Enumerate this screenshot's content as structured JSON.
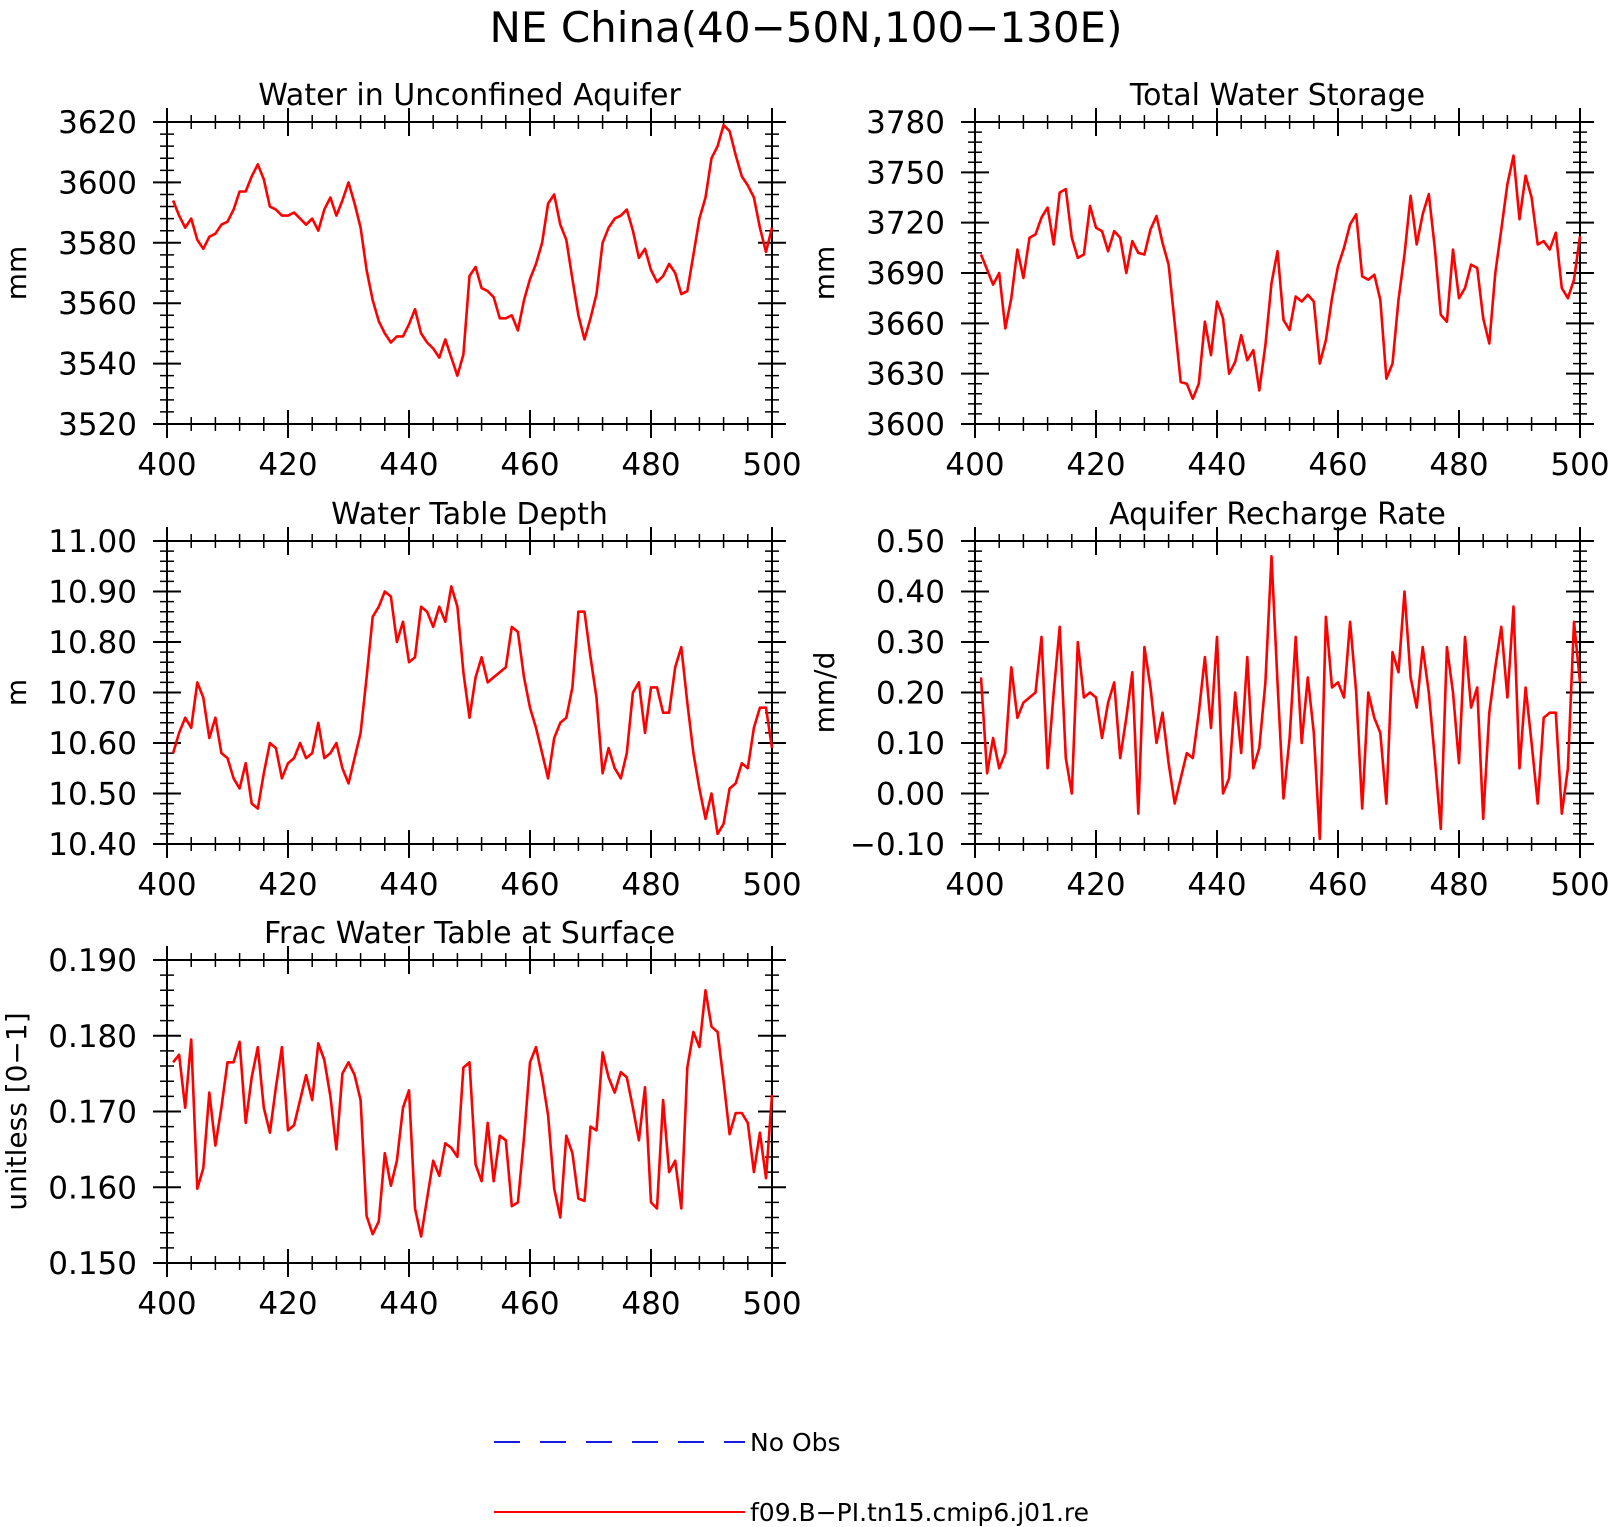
{
  "figure": {
    "title": "NE China(40−50N,100−130E)"
  },
  "legend": {
    "entries": [
      {
        "label": "No Obs",
        "color": "#1a1ae6",
        "style": "dashed"
      },
      {
        "label": "f09.B−PI.tn15.cmip6.j01.re",
        "color": "#ff0000",
        "style": "solid"
      }
    ]
  },
  "chart_data": [
    {
      "type": "line",
      "title": "Water in Unconfined Aquifer",
      "ylabel": "mm",
      "xlim": [
        400,
        500
      ],
      "ylim": [
        3520,
        3620
      ],
      "xticks": [
        "400",
        "420",
        "440",
        "460",
        "480",
        "500"
      ],
      "yticks": [
        "3520",
        "3540",
        "3560",
        "3580",
        "3600",
        "3620"
      ],
      "line_color": "#ff0000",
      "x_start": 401,
      "series": [
        {
          "values": [
            3594,
            3589,
            3585,
            3588,
            3581,
            3578,
            3582,
            3583,
            3586,
            3587,
            3591,
            3597,
            3597,
            3602,
            3606,
            3601,
            3592,
            3591,
            3589,
            3589,
            3590,
            3588,
            3586,
            3588,
            3584,
            3591,
            3595,
            3589,
            3594,
            3600,
            3593,
            3585,
            3571,
            3561,
            3554,
            3550,
            3547,
            3549,
            3549,
            3553,
            3558,
            3550,
            3547,
            3545,
            3542,
            3548,
            3542,
            3536,
            3543,
            3569,
            3572,
            3565,
            3564,
            3562,
            3555,
            3555,
            3556,
            3551,
            3561,
            3568,
            3573,
            3580,
            3593,
            3596,
            3586,
            3581,
            3568,
            3556,
            3548,
            3555,
            3563,
            3580,
            3585,
            3588,
            3589,
            3591,
            3584,
            3575,
            3578,
            3571,
            3567,
            3569,
            3573,
            3570,
            3563,
            3564,
            3576,
            3588,
            3595,
            3608,
            3612,
            3619,
            3617,
            3609,
            3602,
            3599,
            3595,
            3585,
            3577,
            3585
          ]
        }
      ]
    },
    {
      "type": "line",
      "title": "Total Water Storage",
      "ylabel": "mm",
      "xlim": [
        400,
        500
      ],
      "ylim": [
        3600,
        3780
      ],
      "xticks": [
        "400",
        "420",
        "440",
        "460",
        "480",
        "500"
      ],
      "yticks": [
        "3600",
        "3630",
        "3660",
        "3690",
        "3720",
        "3750",
        "3780"
      ],
      "line_color": "#ff0000",
      "x_start": 401,
      "series": [
        {
          "values": [
            3701,
            3692,
            3683,
            3690,
            3657,
            3675,
            3704,
            3687,
            3711,
            3713,
            3723,
            3729,
            3707,
            3738,
            3740,
            3711,
            3699,
            3701,
            3730,
            3717,
            3715,
            3703,
            3715,
            3711,
            3690,
            3709,
            3702,
            3701,
            3716,
            3724,
            3708,
            3695,
            3660,
            3625,
            3624,
            3615,
            3624,
            3661,
            3641,
            3673,
            3663,
            3630,
            3637,
            3653,
            3638,
            3644,
            3620,
            3647,
            3684,
            3703,
            3662,
            3656,
            3676,
            3673,
            3677,
            3673,
            3636,
            3650,
            3675,
            3694,
            3705,
            3719,
            3725,
            3688,
            3686,
            3689,
            3674,
            3627,
            3636,
            3674,
            3701,
            3736,
            3707,
            3725,
            3737,
            3705,
            3665,
            3661,
            3704,
            3675,
            3681,
            3695,
            3693,
            3663,
            3648,
            3690,
            3716,
            3743,
            3760,
            3722,
            3748,
            3735,
            3707,
            3709,
            3704,
            3714,
            3681,
            3675,
            3686,
            3712
          ]
        }
      ]
    },
    {
      "type": "line",
      "title": "Water Table Depth",
      "ylabel": "m",
      "xlim": [
        400,
        500
      ],
      "ylim": [
        10.4,
        11.0
      ],
      "xticks": [
        "400",
        "420",
        "440",
        "460",
        "480",
        "500"
      ],
      "yticks": [
        "10.40",
        "10.50",
        "10.60",
        "10.70",
        "10.80",
        "10.90",
        "11.00"
      ],
      "line_color": "#ff0000",
      "x_start": 401,
      "series": [
        {
          "values": [
            10.58,
            10.62,
            10.65,
            10.63,
            10.72,
            10.69,
            10.61,
            10.65,
            10.58,
            10.57,
            10.53,
            10.51,
            10.56,
            10.48,
            10.47,
            10.54,
            10.6,
            10.59,
            10.53,
            10.56,
            10.57,
            10.6,
            10.57,
            10.58,
            10.64,
            10.57,
            10.58,
            10.6,
            10.55,
            10.52,
            10.57,
            10.62,
            10.73,
            10.85,
            10.87,
            10.9,
            10.89,
            10.8,
            10.84,
            10.76,
            10.77,
            10.87,
            10.86,
            10.83,
            10.87,
            10.84,
            10.91,
            10.87,
            10.74,
            10.65,
            10.73,
            10.77,
            10.72,
            10.73,
            10.74,
            10.75,
            10.83,
            10.82,
            10.73,
            10.67,
            10.63,
            10.58,
            10.53,
            10.61,
            10.64,
            10.65,
            10.71,
            10.86,
            10.86,
            10.77,
            10.69,
            10.54,
            10.59,
            10.55,
            10.53,
            10.58,
            10.7,
            10.72,
            10.62,
            10.71,
            10.71,
            10.66,
            10.66,
            10.75,
            10.79,
            10.68,
            10.58,
            10.51,
            10.45,
            10.5,
            10.42,
            10.44,
            10.51,
            10.52,
            10.56,
            10.55,
            10.63,
            10.67,
            10.67,
            10.59
          ]
        }
      ]
    },
    {
      "type": "line",
      "title": "Aquifer Recharge Rate",
      "ylabel": "mm/d",
      "xlim": [
        400,
        500
      ],
      "ylim": [
        -0.1,
        0.5
      ],
      "xticks": [
        "400",
        "420",
        "440",
        "460",
        "480",
        "500"
      ],
      "yticks": [
        "−0.10",
        "0.00",
        "0.10",
        "0.20",
        "0.30",
        "0.40",
        "0.50"
      ],
      "line_color": "#ff0000",
      "x_start": 401,
      "series": [
        {
          "values": [
            0.23,
            0.04,
            0.11,
            0.05,
            0.08,
            0.25,
            0.15,
            0.18,
            0.19,
            0.2,
            0.31,
            0.05,
            0.2,
            0.33,
            0.07,
            0.0,
            0.3,
            0.19,
            0.2,
            0.19,
            0.11,
            0.18,
            0.22,
            0.07,
            0.15,
            0.24,
            -0.04,
            0.29,
            0.21,
            0.1,
            0.16,
            0.06,
            -0.02,
            0.03,
            0.08,
            0.07,
            0.16,
            0.27,
            0.13,
            0.31,
            0.0,
            0.03,
            0.2,
            0.08,
            0.27,
            0.05,
            0.09,
            0.22,
            0.47,
            0.22,
            -0.01,
            0.11,
            0.31,
            0.1,
            0.23,
            0.12,
            -0.09,
            0.35,
            0.21,
            0.22,
            0.19,
            0.34,
            0.2,
            -0.03,
            0.2,
            0.15,
            0.12,
            -0.02,
            0.28,
            0.24,
            0.4,
            0.23,
            0.17,
            0.29,
            0.2,
            0.07,
            -0.07,
            0.29,
            0.2,
            0.06,
            0.31,
            0.17,
            0.21,
            -0.05,
            0.16,
            0.25,
            0.33,
            0.19,
            0.37,
            0.05,
            0.21,
            0.1,
            -0.02,
            0.15,
            0.16,
            0.16,
            -0.04,
            0.05,
            0.34,
            0.22
          ]
        }
      ]
    },
    {
      "type": "line",
      "title": "Frac Water Table at Surface",
      "ylabel": "unitless [0−1]",
      "xlim": [
        400,
        500
      ],
      "ylim": [
        0.15,
        0.19
      ],
      "xticks": [
        "400",
        "420",
        "440",
        "460",
        "480",
        "500"
      ],
      "yticks": [
        "0.150",
        "0.160",
        "0.170",
        "0.180",
        "0.190"
      ],
      "line_color": "#ff0000",
      "x_start": 401,
      "series": [
        {
          "values": [
            0.1765,
            0.1775,
            0.1705,
            0.1795,
            0.1598,
            0.1625,
            0.1725,
            0.1655,
            0.1705,
            0.1765,
            0.1765,
            0.1792,
            0.1685,
            0.1745,
            0.1785,
            0.1705,
            0.1672,
            0.1732,
            0.1785,
            0.1675,
            0.1682,
            0.1715,
            0.1748,
            0.1715,
            0.179,
            0.1768,
            0.172,
            0.165,
            0.175,
            0.1765,
            0.1748,
            0.1715,
            0.1562,
            0.1538,
            0.1555,
            0.1645,
            0.1602,
            0.1635,
            0.1705,
            0.1728,
            0.1572,
            0.1535,
            0.1585,
            0.1635,
            0.1615,
            0.1658,
            0.1652,
            0.164,
            0.1758,
            0.1765,
            0.163,
            0.1608,
            0.1685,
            0.1608,
            0.1668,
            0.1662,
            0.1575,
            0.158,
            0.1665,
            0.1765,
            0.1785,
            0.1745,
            0.1695,
            0.1598,
            0.156,
            0.1668,
            0.1645,
            0.1585,
            0.1582,
            0.168,
            0.1675,
            0.1778,
            0.1745,
            0.1725,
            0.1752,
            0.1745,
            0.1705,
            0.1662,
            0.1732,
            0.158,
            0.1572,
            0.1715,
            0.162,
            0.1635,
            0.1572,
            0.1758,
            0.1805,
            0.1785,
            0.186,
            0.1812,
            0.1805,
            0.174,
            0.167,
            0.1698,
            0.1698,
            0.1685,
            0.162,
            0.1672,
            0.1612,
            0.1722
          ]
        }
      ]
    }
  ]
}
